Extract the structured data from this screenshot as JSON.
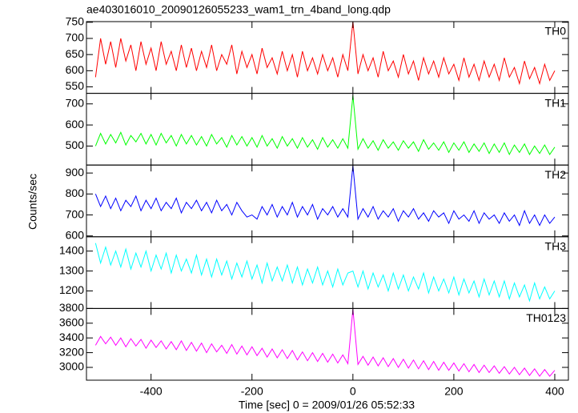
{
  "chart_data": {
    "type": "line",
    "title": "ae403016010_20090126055233_wam1_trn_4band_long.qdp",
    "xlabel": "Time [sec] 0 = 2009/01/26 05:52:33",
    "ylabel": "Counts/sec",
    "xlim": [
      -528,
      427
    ],
    "xticks": [
      -400,
      -200,
      0,
      200,
      400
    ],
    "x": [
      -510,
      -500,
      -490,
      -480,
      -470,
      -460,
      -450,
      -440,
      -430,
      -420,
      -410,
      -400,
      -390,
      -380,
      -370,
      -360,
      -350,
      -340,
      -330,
      -320,
      -310,
      -300,
      -290,
      -280,
      -270,
      -260,
      -250,
      -240,
      -230,
      -220,
      -210,
      -200,
      -190,
      -180,
      -170,
      -160,
      -150,
      -140,
      -130,
      -120,
      -110,
      -100,
      -90,
      -80,
      -70,
      -60,
      -50,
      -40,
      -30,
      -20,
      -10,
      0,
      10,
      20,
      30,
      40,
      50,
      60,
      70,
      80,
      90,
      100,
      110,
      120,
      130,
      140,
      150,
      160,
      170,
      180,
      190,
      200,
      210,
      220,
      230,
      240,
      250,
      260,
      270,
      280,
      290,
      300,
      310,
      320,
      330,
      340,
      350,
      360,
      370,
      380,
      390,
      400
    ],
    "series": [
      {
        "name": "TH0",
        "color": "#ff0000",
        "ylim": [
          530,
          752
        ],
        "yticks": [
          550,
          600,
          650,
          700,
          750
        ],
        "values": [
          580,
          700,
          620,
          690,
          610,
          700,
          630,
          680,
          600,
          690,
          620,
          670,
          600,
          690,
          620,
          660,
          600,
          680,
          610,
          670,
          600,
          660,
          610,
          680,
          600,
          650,
          620,
          680,
          590,
          660,
          610,
          650,
          590,
          670,
          610,
          640,
          590,
          660,
          600,
          650,
          580,
          660,
          600,
          640,
          590,
          650,
          600,
          640,
          580,
          650,
          600,
          752,
          590,
          650,
          600,
          640,
          580,
          660,
          600,
          630,
          580,
          650,
          590,
          630,
          570,
          640,
          590,
          630,
          580,
          640,
          590,
          620,
          570,
          640,
          580,
          620,
          570,
          630,
          580,
          620,
          570,
          640,
          580,
          610,
          560,
          630,
          575,
          610,
          560,
          620,
          570,
          600
        ]
      },
      {
        "name": "TH1",
        "color": "#00ff00",
        "ylim": [
          410,
          750
        ],
        "yticks": [
          500,
          600,
          700
        ],
        "values": [
          500,
          560,
          510,
          555,
          515,
          565,
          505,
          550,
          520,
          560,
          510,
          555,
          505,
          560,
          515,
          550,
          500,
          555,
          510,
          550,
          505,
          545,
          500,
          555,
          510,
          540,
          495,
          550,
          505,
          545,
          500,
          540,
          495,
          550,
          500,
          535,
          490,
          545,
          500,
          535,
          490,
          540,
          495,
          530,
          485,
          540,
          495,
          530,
          490,
          535,
          490,
          740,
          485,
          535,
          490,
          525,
          480,
          530,
          490,
          520,
          480,
          525,
          490,
          520,
          475,
          530,
          485,
          515,
          480,
          520,
          470,
          515,
          480,
          520,
          470,
          510,
          475,
          515,
          465,
          510,
          470,
          515,
          460,
          505,
          470,
          510,
          460,
          500,
          465,
          505,
          460,
          495
        ]
      },
      {
        "name": "TH2",
        "color": "#0000ff",
        "ylim": [
          596,
          938
        ],
        "yticks": [
          600,
          700,
          800,
          900
        ],
        "values": [
          800,
          740,
          790,
          730,
          780,
          720,
          770,
          740,
          790,
          720,
          770,
          730,
          780,
          720,
          760,
          730,
          780,
          710,
          760,
          730,
          770,
          720,
          760,
          710,
          770,
          720,
          750,
          700,
          760,
          720,
          690,
          700,
          680,
          740,
          700,
          750,
          690,
          740,
          700,
          760,
          690,
          740,
          700,
          750,
          680,
          730,
          700,
          740,
          690,
          730,
          690,
          935,
          680,
          730,
          690,
          740,
          680,
          720,
          690,
          730,
          670,
          720,
          690,
          730,
          680,
          710,
          670,
          720,
          690,
          710,
          660,
          720,
          680,
          700,
          670,
          720,
          660,
          710,
          680,
          700,
          660,
          710,
          670,
          700,
          650,
          720,
          660,
          700,
          650,
          700,
          660,
          690
        ]
      },
      {
        "name": "TH3",
        "color": "#00ffff",
        "ylim": [
          1112,
          1472
        ],
        "yticks": [
          1200,
          1300,
          1400
        ],
        "values": [
          1440,
          1340,
          1420,
          1330,
          1400,
          1320,
          1410,
          1310,
          1390,
          1320,
          1400,
          1300,
          1380,
          1310,
          1390,
          1290,
          1380,
          1300,
          1360,
          1290,
          1380,
          1280,
          1360,
          1270,
          1360,
          1280,
          1350,
          1260,
          1340,
          1270,
          1350,
          1260,
          1330,
          1240,
          1340,
          1250,
          1320,
          1250,
          1330,
          1240,
          1320,
          1230,
          1310,
          1240,
          1320,
          1230,
          1300,
          1220,
          1310,
          1230,
          1290,
          1300,
          1220,
          1300,
          1210,
          1290,
          1220,
          1280,
          1200,
          1290,
          1210,
          1280,
          1200,
          1270,
          1210,
          1290,
          1190,
          1270,
          1200,
          1260,
          1190,
          1270,
          1180,
          1260,
          1190,
          1250,
          1170,
          1260,
          1180,
          1250,
          1170,
          1250,
          1160,
          1240,
          1170,
          1230,
          1150,
          1240,
          1160,
          1220,
          1160,
          1200
        ]
      },
      {
        "name": "TH0123",
        "color": "#ff00ff",
        "ylim": [
          2826,
          3800
        ],
        "yticks": [
          3000,
          3200,
          3400,
          3600,
          3800
        ],
        "values": [
          3300,
          3420,
          3320,
          3410,
          3300,
          3400,
          3280,
          3390,
          3290,
          3380,
          3260,
          3370,
          3270,
          3360,
          3250,
          3350,
          3240,
          3360,
          3230,
          3340,
          3220,
          3330,
          3200,
          3320,
          3210,
          3300,
          3190,
          3310,
          3180,
          3290,
          3170,
          3280,
          3160,
          3260,
          3140,
          3250,
          3130,
          3240,
          3120,
          3230,
          3100,
          3210,
          3090,
          3200,
          3080,
          3190,
          3070,
          3180,
          3060,
          3170,
          3050,
          3790,
          3040,
          3150,
          3030,
          3140,
          3020,
          3130,
          3010,
          3120,
          3000,
          3110,
          2990,
          3100,
          2980,
          3090,
          2970,
          3080,
          2960,
          3070,
          2960,
          3060,
          2950,
          3050,
          2940,
          3040,
          2930,
          3030,
          2930,
          3020,
          2920,
          3010,
          2910,
          3000,
          2900,
          2990,
          2890,
          2980,
          2880,
          2970,
          2880,
          2960
        ]
      }
    ]
  }
}
